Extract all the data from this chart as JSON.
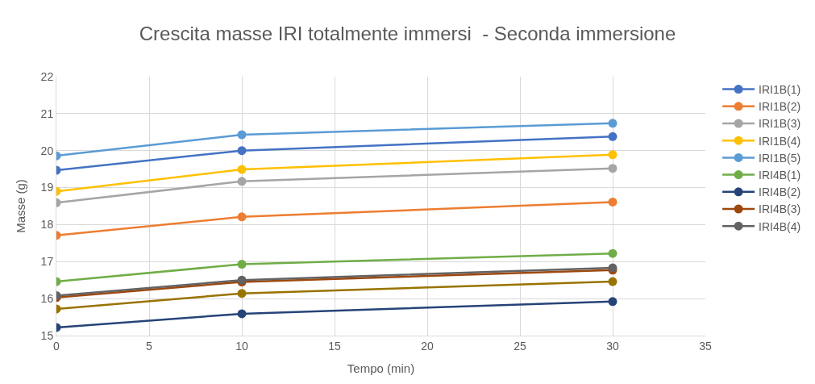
{
  "chart_data": {
    "type": "line",
    "title": "Crescita masse IRI totalmente immersi  - Seconda immersione",
    "xlabel": "Tempo (min)",
    "ylabel": "Masse (g)",
    "x": [
      0,
      10,
      30
    ],
    "xlim": [
      0,
      35
    ],
    "xticks": [
      0,
      5,
      10,
      15,
      20,
      25,
      30,
      35
    ],
    "ylim": [
      15,
      22
    ],
    "yticks": [
      15,
      16,
      17,
      18,
      19,
      20,
      21,
      22
    ],
    "grid": true,
    "legend": "right",
    "marker": "circle",
    "series": [
      {
        "name": "IRI1B(1)",
        "color": "#4472c4",
        "values": [
          19.47,
          20.0,
          20.38
        ]
      },
      {
        "name": "IRI1B(2)",
        "color": "#ed7d31",
        "values": [
          17.71,
          18.21,
          18.61
        ]
      },
      {
        "name": "IRI1B(3)",
        "color": "#a5a5a5",
        "values": [
          18.59,
          19.17,
          19.52
        ]
      },
      {
        "name": "IRI1B(4)",
        "color": "#ffc000",
        "values": [
          18.9,
          19.49,
          19.89
        ]
      },
      {
        "name": "IRI1B(5)",
        "color": "#5b9bd5",
        "values": [
          19.86,
          20.43,
          20.74
        ]
      },
      {
        "name": "IRI4B(1)",
        "color": "#70ad47",
        "values": [
          16.46,
          16.93,
          17.22
        ]
      },
      {
        "name": "IRI4B(2)",
        "color": "#264478",
        "values": [
          15.22,
          15.59,
          15.92
        ]
      },
      {
        "name": "IRI4B(3)",
        "color": "#9e480e",
        "values": [
          16.03,
          16.45,
          16.77
        ]
      },
      {
        "name": "IRI4B(4)",
        "color": "#636363",
        "values": [
          16.08,
          16.5,
          16.83
        ]
      },
      {
        "color": "#997300",
        "values": [
          15.72,
          16.14,
          16.46
        ]
      }
    ]
  }
}
